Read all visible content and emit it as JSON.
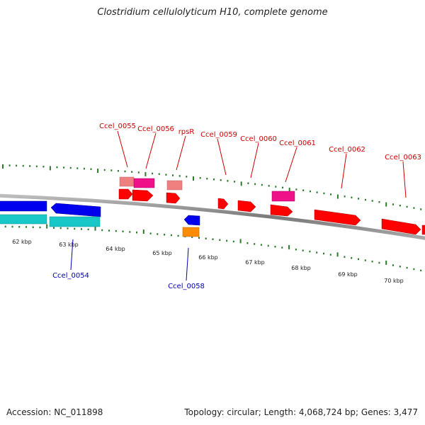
{
  "title": "Clostridium cellulolyticum H10, complete genome",
  "footer": {
    "accession": "Accession: NC_011898",
    "summary": "Topology: circular; Length: 4,068,724 bp; Genes: 3,477"
  },
  "colors": {
    "backbone": "#808080",
    "tick": "#2a7a2a",
    "label_forward": "#cc0000",
    "label_reverse": "#0000aa",
    "gene_red": "#ff0000",
    "gene_pink": "#f08080",
    "gene_magenta": "#ee1188",
    "gene_blue": "#0000ee",
    "gene_cyan": "#18c8c8",
    "gene_orange": "#ff8c00"
  },
  "scale_labels": [
    "62 kbp",
    "63 kbp",
    "64 kbp",
    "65 kbp",
    "66 kbp",
    "67 kbp",
    "68 kbp",
    "69 kbp",
    "70 kbp"
  ],
  "gene_labels_forward": [
    "Ccel_0055",
    "Ccel_0056",
    "rpsR",
    "Ccel_0059",
    "Ccel_0060",
    "Ccel_0061",
    "Ccel_0062",
    "Ccel_0063"
  ],
  "gene_labels_reverse": [
    "Ccel_0054",
    "Ccel_0058"
  ]
}
